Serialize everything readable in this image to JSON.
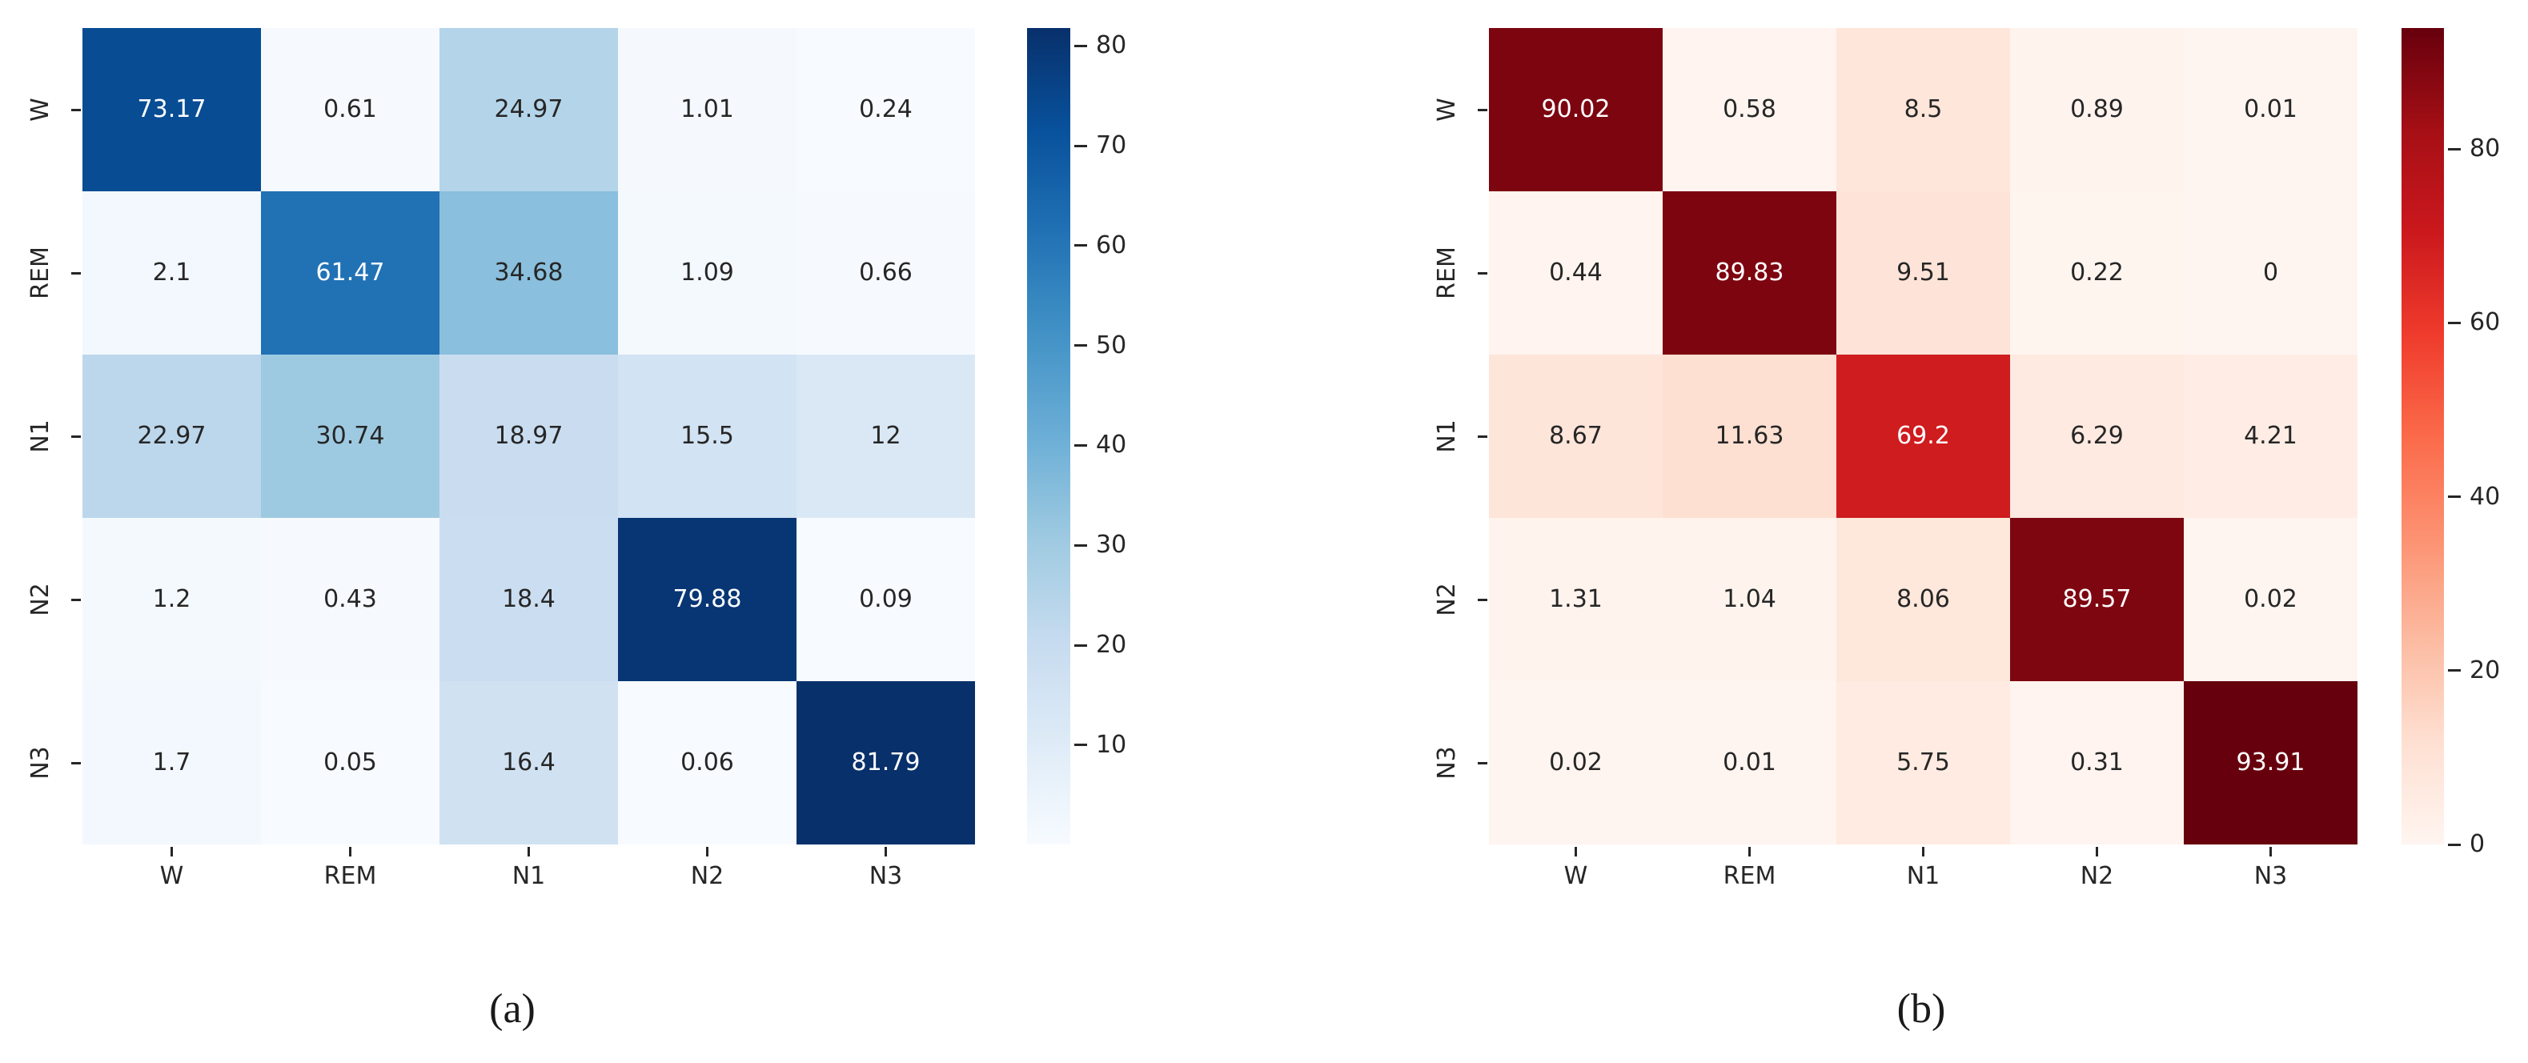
{
  "page": {
    "background": "#ffffff"
  },
  "colors": {
    "background": "#ffffff",
    "axis_text": "#262626",
    "tick_color": "#262626",
    "cell_text_dark": "#262626",
    "cell_text_light": "#ffffff",
    "blues_colormap": [
      "#f7fbff",
      "#deebf7",
      "#c6dbef",
      "#9ecae1",
      "#6baed6",
      "#4292c6",
      "#2171b5",
      "#08519c",
      "#08306b"
    ],
    "reds_colormap": [
      "#fff5f0",
      "#fee0d2",
      "#fcbba1",
      "#fc9272",
      "#fb6a4a",
      "#ef3b2c",
      "#cb181d",
      "#a50f15",
      "#67000d"
    ]
  },
  "chart_data": [
    {
      "type": "heatmap",
      "panel": "a",
      "caption": "(a)",
      "colormap": "Blues",
      "title": "",
      "xlabel": "",
      "ylabel": "",
      "x_tick_labels": [
        "W",
        "REM",
        "N1",
        "N2",
        "N3"
      ],
      "y_tick_labels": [
        "W",
        "REM",
        "N1",
        "N2",
        "N3"
      ],
      "values": [
        [
          73.17,
          0.61,
          24.97,
          1.01,
          0.24
        ],
        [
          2.1,
          61.47,
          34.68,
          1.09,
          0.66
        ],
        [
          22.97,
          30.74,
          18.97,
          15.5,
          12
        ],
        [
          1.2,
          0.43,
          18.4,
          79.88,
          0.09
        ],
        [
          1.7,
          0.05,
          16.4,
          0.06,
          81.79
        ]
      ],
      "cell_labels": [
        [
          "73.17",
          "0.61",
          "24.97",
          "1.01",
          "0.24"
        ],
        [
          "2.1",
          "61.47",
          "34.68",
          "1.09",
          "0.66"
        ],
        [
          "22.97",
          "30.74",
          "18.97",
          "15.5",
          "12"
        ],
        [
          "1.2",
          "0.43",
          "18.4",
          "79.88",
          "0.09"
        ],
        [
          "1.7",
          "0.05",
          "16.4",
          "0.06",
          "81.79"
        ]
      ],
      "vmin": 0.05,
      "vmax": 81.79,
      "colorbar_ticks": [
        80,
        70,
        60,
        50,
        40,
        30,
        20,
        10
      ],
      "legend_position": "right-colorbar",
      "grid": false
    },
    {
      "type": "heatmap",
      "panel": "b",
      "caption": "(b)",
      "colormap": "Reds",
      "title": "",
      "xlabel": "",
      "ylabel": "",
      "x_tick_labels": [
        "W",
        "REM",
        "N1",
        "N2",
        "N3"
      ],
      "y_tick_labels": [
        "W",
        "REM",
        "N1",
        "N2",
        "N3"
      ],
      "values": [
        [
          90.02,
          0.58,
          8.5,
          0.89,
          0.01
        ],
        [
          0.44,
          89.83,
          9.51,
          0.22,
          0
        ],
        [
          8.67,
          11.63,
          69.2,
          6.29,
          4.21
        ],
        [
          1.31,
          1.04,
          8.06,
          89.57,
          0.02
        ],
        [
          0.02,
          0.01,
          5.75,
          0.31,
          93.91
        ]
      ],
      "cell_labels": [
        [
          "90.02",
          "0.58",
          "8.5",
          "0.89",
          "0.01"
        ],
        [
          "0.44",
          "89.83",
          "9.51",
          "0.22",
          "0"
        ],
        [
          "8.67",
          "11.63",
          "69.2",
          "6.29",
          "4.21"
        ],
        [
          "1.31",
          "1.04",
          "8.06",
          "89.57",
          "0.02"
        ],
        [
          "0.02",
          "0.01",
          "5.75",
          "0.31",
          "93.91"
        ]
      ],
      "vmin": 0,
      "vmax": 93.91,
      "colorbar_ticks": [
        80,
        60,
        40,
        20,
        0
      ],
      "legend_position": "right-colorbar",
      "grid": false
    }
  ]
}
